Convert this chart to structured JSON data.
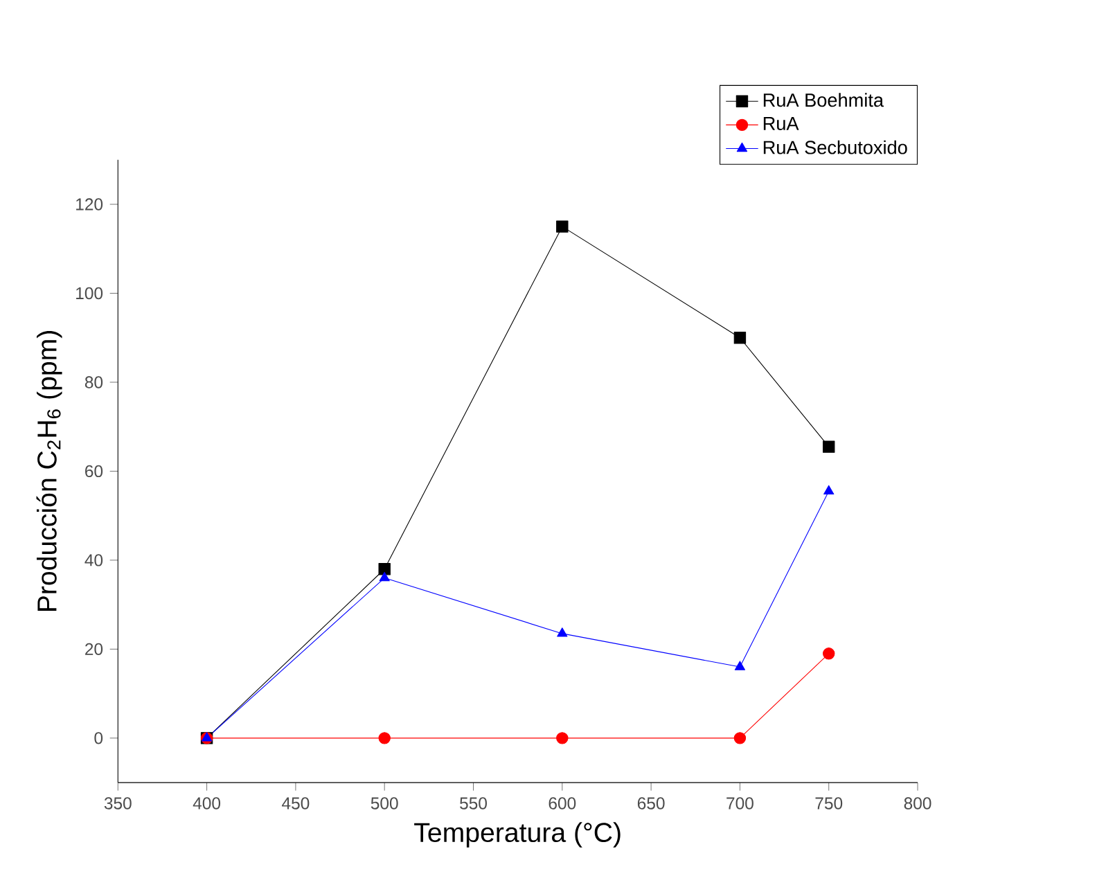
{
  "chart_data": {
    "type": "line",
    "xlabel": "Temperatura (°C)",
    "ylabel": "Producción C$_{2}$H$_{6}$ (ppm)",
    "x": [
      400,
      500,
      600,
      700,
      750
    ],
    "series": [
      {
        "name": "RuA Boehmita",
        "color": "#000000",
        "marker": "square",
        "values": [
          0,
          38,
          115,
          90,
          65.5
        ]
      },
      {
        "name": "RuA",
        "color": "#ff0000",
        "marker": "circle",
        "values": [
          0,
          0,
          0,
          0,
          19
        ]
      },
      {
        "name": "RuA Secbutoxido",
        "color": "#0000ff",
        "marker": "triangle",
        "values": [
          0,
          36,
          23.5,
          16,
          55.5
        ]
      }
    ],
    "xlim": [
      350,
      800
    ],
    "ylim": [
      -10,
      130
    ],
    "xticks": [
      350,
      400,
      450,
      500,
      550,
      600,
      650,
      700,
      750,
      800
    ],
    "yticks": [
      0,
      20,
      40,
      60,
      80,
      100,
      120
    ],
    "legend": "top right",
    "grid": false
  }
}
